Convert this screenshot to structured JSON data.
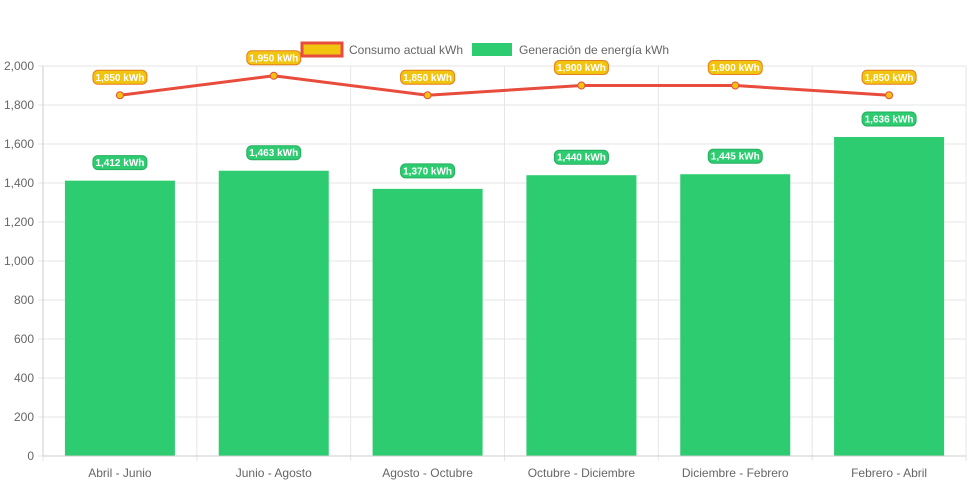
{
  "chart_data": {
    "type": "bar",
    "categories": [
      "Abril - Junio",
      "Junio - Agosto",
      "Agosto - Octubre",
      "Octubre - Diciembre",
      "Diciembre - Febrero",
      "Febrero - Abril"
    ],
    "series": [
      {
        "name": "Consumo actual kWh",
        "kind": "line",
        "color": "#e74c3c",
        "marker_fill": "#f1c40f",
        "values": [
          1850,
          1950,
          1850,
          1900,
          1900,
          1850
        ],
        "labels": [
          "1,850 kWh",
          "1,950 kWh",
          "1,850 kWh",
          "1,900 kWh",
          "1,900 kWh",
          "1,850 kWh"
        ]
      },
      {
        "name": "Generación de energía kWh",
        "kind": "bar",
        "color": "#2ecc71",
        "values": [
          1412,
          1463,
          1370,
          1440,
          1445,
          1636
        ],
        "labels": [
          "1,412 kWh",
          "1,463 kWh",
          "1,370 kWh",
          "1,440 kWh",
          "1,445 kWh",
          "1,636 kWh"
        ]
      }
    ],
    "ylim": [
      0,
      2000
    ],
    "yticks": [
      0,
      200,
      400,
      600,
      800,
      1000,
      1200,
      1400,
      1600,
      1800,
      2000
    ],
    "ytick_labels": [
      "0",
      "200",
      "400",
      "600",
      "800",
      "1,000",
      "1,200",
      "1,400",
      "1,600",
      "1,800",
      "2,000"
    ],
    "grid": true,
    "legend_position": "top-center",
    "title": "",
    "xlabel": "",
    "ylabel": ""
  }
}
